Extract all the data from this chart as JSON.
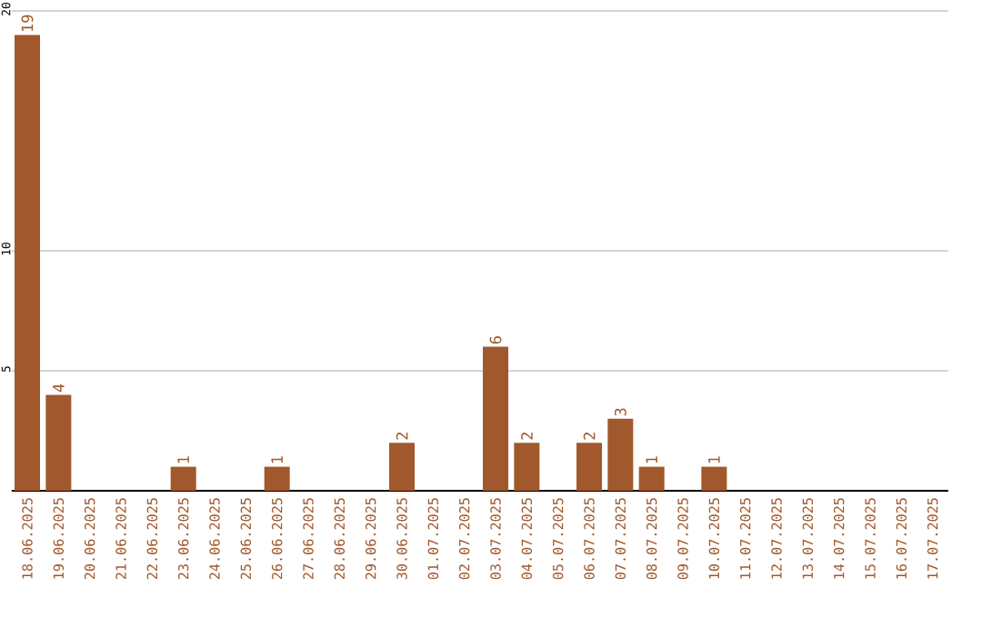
{
  "chart_data": {
    "type": "bar",
    "categories": [
      "18.06.2025",
      "19.06.2025",
      "20.06.2025",
      "21.06.2025",
      "22.06.2025",
      "23.06.2025",
      "24.06.2025",
      "25.06.2025",
      "26.06.2025",
      "27.06.2025",
      "28.06.2025",
      "29.06.2025",
      "30.06.2025",
      "01.07.2025",
      "02.07.2025",
      "03.07.2025",
      "04.07.2025",
      "05.07.2025",
      "06.07.2025",
      "07.07.2025",
      "08.07.2025",
      "09.07.2025",
      "10.07.2025",
      "11.07.2025",
      "12.07.2025",
      "13.07.2025",
      "14.07.2025",
      "15.07.2025",
      "16.07.2025",
      "17.07.2025"
    ],
    "values": [
      19,
      4,
      0,
      0,
      0,
      1,
      0,
      0,
      1,
      0,
      0,
      0,
      2,
      0,
      0,
      6,
      2,
      0,
      2,
      3,
      1,
      0,
      1,
      0,
      0,
      0,
      0,
      0,
      0,
      0
    ],
    "value_labels": [
      "19",
      "4",
      null,
      null,
      null,
      "1",
      null,
      null,
      "1",
      null,
      null,
      null,
      "2",
      null,
      null,
      "6",
      "2",
      null,
      "2",
      "3",
      "1",
      null,
      "1",
      null,
      null,
      null,
      null,
      null,
      null,
      null
    ],
    "color": "#a0582c",
    "ylim": [
      0,
      20
    ],
    "yticks": [
      5,
      10,
      20
    ],
    "grid": "y"
  }
}
